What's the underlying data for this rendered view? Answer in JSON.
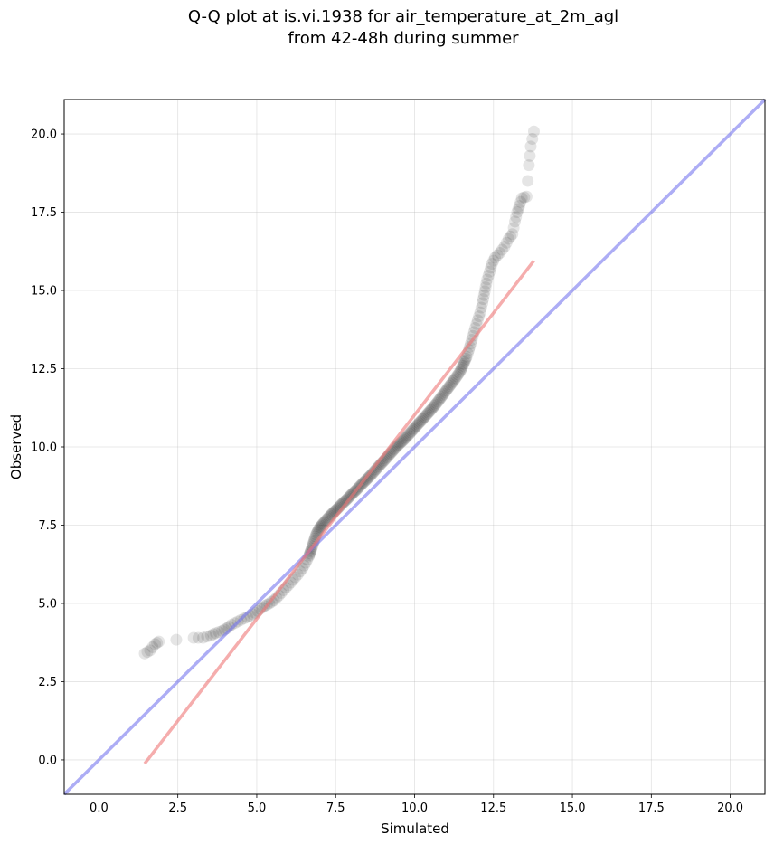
{
  "chart_data": {
    "type": "scatter",
    "title_lines": [
      "Q-Q plot at is.vi.1938 for air_temperature_at_2m_agl",
      "from 42-48h during summer"
    ],
    "xlabel": "Simulated",
    "ylabel": "Observed",
    "xlim": [
      -1.1,
      21.1
    ],
    "ylim": [
      -1.1,
      21.1
    ],
    "xticks": [
      "0.0",
      "2.5",
      "5.0",
      "7.5",
      "10.0",
      "12.5",
      "15.0",
      "17.5",
      "20.0"
    ],
    "yticks": [
      "0.0",
      "2.5",
      "5.0",
      "7.5",
      "10.0",
      "12.5",
      "15.0",
      "17.5",
      "20.0"
    ],
    "grid": true,
    "colors": {
      "points": "#000000",
      "identity_line": "#7777ee",
      "fit_line": "#ee7777"
    },
    "quantile_points": [
      [
        1.45,
        3.4
      ],
      [
        1.62,
        3.5
      ],
      [
        1.78,
        3.7
      ],
      [
        1.9,
        3.78
      ],
      [
        3.0,
        3.9
      ],
      [
        3.3,
        3.9
      ],
      [
        3.55,
        3.98
      ],
      [
        3.7,
        4.05
      ],
      [
        3.9,
        4.12
      ],
      [
        4.05,
        4.2
      ],
      [
        4.2,
        4.32
      ],
      [
        4.4,
        4.42
      ],
      [
        4.6,
        4.52
      ],
      [
        4.8,
        4.6
      ],
      [
        4.95,
        4.7
      ],
      [
        5.1,
        4.82
      ],
      [
        5.25,
        4.92
      ],
      [
        5.4,
        5.0
      ],
      [
        5.55,
        5.1
      ],
      [
        5.7,
        5.25
      ],
      [
        5.85,
        5.42
      ],
      [
        6.0,
        5.58
      ],
      [
        6.15,
        5.75
      ],
      [
        6.3,
        5.92
      ],
      [
        6.45,
        6.12
      ],
      [
        6.55,
        6.3
      ],
      [
        6.65,
        6.5
      ],
      [
        6.72,
        6.7
      ],
      [
        6.8,
        6.95
      ],
      [
        6.88,
        7.2
      ],
      [
        6.98,
        7.4
      ],
      [
        7.1,
        7.55
      ],
      [
        7.25,
        7.72
      ],
      [
        7.4,
        7.88
      ],
      [
        7.55,
        8.02
      ],
      [
        7.7,
        8.18
      ],
      [
        7.85,
        8.32
      ],
      [
        8.0,
        8.48
      ],
      [
        8.15,
        8.62
      ],
      [
        8.3,
        8.78
      ],
      [
        8.45,
        8.93
      ],
      [
        8.6,
        9.08
      ],
      [
        8.75,
        9.25
      ],
      [
        8.9,
        9.42
      ],
      [
        9.05,
        9.58
      ],
      [
        9.2,
        9.75
      ],
      [
        9.35,
        9.92
      ],
      [
        9.5,
        10.08
      ],
      [
        9.65,
        10.22
      ],
      [
        9.8,
        10.38
      ],
      [
        9.95,
        10.55
      ],
      [
        10.1,
        10.72
      ],
      [
        10.25,
        10.88
      ],
      [
        10.4,
        11.05
      ],
      [
        10.55,
        11.22
      ],
      [
        10.7,
        11.4
      ],
      [
        10.85,
        11.6
      ],
      [
        11.0,
        11.8
      ],
      [
        11.15,
        12.0
      ],
      [
        11.3,
        12.2
      ],
      [
        11.45,
        12.42
      ],
      [
        11.55,
        12.65
      ],
      [
        11.65,
        12.88
      ],
      [
        11.72,
        13.1
      ],
      [
        11.78,
        13.3
      ],
      [
        11.85,
        13.55
      ],
      [
        11.92,
        13.8
      ],
      [
        12.0,
        14.05
      ],
      [
        12.08,
        14.3
      ],
      [
        12.15,
        14.6
      ],
      [
        12.2,
        14.85
      ],
      [
        12.25,
        15.1
      ],
      [
        12.3,
        15.35
      ],
      [
        12.38,
        15.6
      ],
      [
        12.45,
        15.85
      ],
      [
        12.55,
        16.05
      ],
      [
        12.7,
        16.2
      ],
      [
        12.85,
        16.4
      ],
      [
        12.98,
        16.65
      ],
      [
        13.1,
        16.8
      ],
      [
        13.18,
        17.2
      ],
      [
        13.25,
        17.5
      ],
      [
        13.32,
        17.7
      ],
      [
        13.4,
        17.95
      ],
      [
        13.55,
        18.0
      ],
      [
        13.62,
        19.0
      ],
      [
        13.68,
        19.6
      ],
      [
        13.78,
        20.08
      ]
    ],
    "identity_line": {
      "from": [
        -1.1,
        -1.1
      ],
      "to": [
        21.1,
        21.1
      ]
    },
    "fit_line": {
      "from": [
        1.45,
        -0.12
      ],
      "to": [
        13.78,
        15.95
      ]
    }
  }
}
